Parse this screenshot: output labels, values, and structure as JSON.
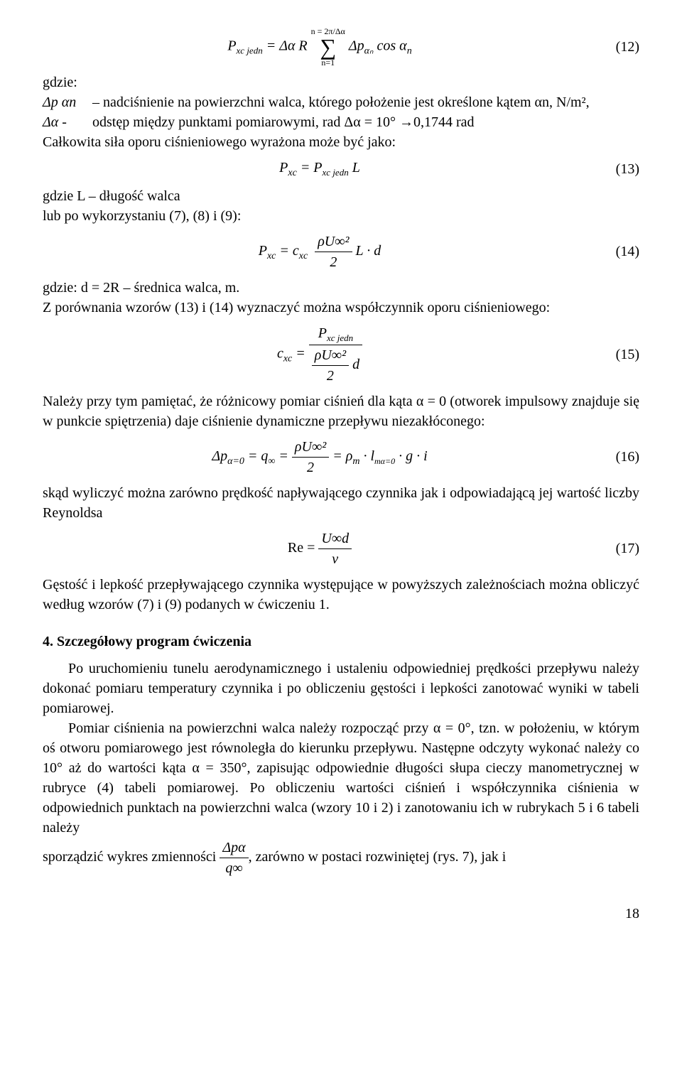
{
  "eq12": {
    "left": "P",
    "left_sub": "xc jedn",
    "mid1": " = Δα R ",
    "sum_top": "n = 2π/Δα",
    "sum_bot": "n=1",
    "after_sum": " Δp",
    "after_sum_sub": "αₙ",
    "cos": " cos α",
    "cos_sub": "n",
    "num": "(12)"
  },
  "gdzie1": "gdzie:",
  "def_dp": {
    "label": "Δp αn",
    "text": "– nadciśnienie na powierzchni walca, którego położenie jest określone kątem αn, N/m²,"
  },
  "def_da": {
    "label": "Δα -",
    "text": "odstęp między punktami pomiarowymi, rad  Δα = 10° →0,1744 rad"
  },
  "line_calk": "Całkowita siła oporu ciśnieniowego wyrażona może być jako:",
  "eq13": {
    "left": "P",
    "left_sub": "xc",
    "eq": " = P",
    "right_sub": "xc jedn",
    "tail": " L",
    "num": "(13)"
  },
  "line_gdzieL": "gdzie L – długość walca",
  "line_lubpo": "lub po wykorzystaniu (7), (8) i (9):",
  "eq14": {
    "left": "P",
    "left_sub": "xc",
    "eq1": " = c",
    "eq1_sub": "xc",
    "frac_num": "ρU∞²",
    "frac_den": "2",
    "tail": " L · d",
    "num": "(14)"
  },
  "line_gdzied": "gdzie: d = 2R – średnica walca, m.",
  "line_zporow": "Z porównania wzorów (13) i (14) wyznaczyć można współczynnik oporu ciśnieniowego:",
  "eq15": {
    "left": "c",
    "left_sub": "xc",
    "eq": " = ",
    "frac_num_P": "P",
    "frac_num_sub": "xc jedn",
    "frac_den_inner_num": "ρU∞²",
    "frac_den_inner_den": "2",
    "frac_den_tail": " d",
    "num": "(15)"
  },
  "para_nalezy": "Należy przy tym pamiętać, że różnicowy pomiar ciśnień dla kąta α = 0 (otworek impulsowy znajduje się w punkcie spiętrzenia) daje ciśnienie dynamiczne przepływu niezakłóconego:",
  "eq16": {
    "a": "Δp",
    "a_sub": "α=0",
    "b": " = q",
    "b_sub": "∞",
    "c": " = ",
    "frac_num": "ρU∞²",
    "frac_den": "2",
    "d": " = ρ",
    "d_sub": "m",
    "e": " · l",
    "e_sub": "mα=0",
    "f": " · g · i",
    "num": "(16)"
  },
  "para_skad": "skąd wyliczyć można zarówno prędkość napływającego czynnika jak i odpowiadającą jej wartość liczby Reynoldsa",
  "eq17": {
    "left": "Re = ",
    "frac_num": "U∞d",
    "frac_den": "ν",
    "num": "(17)"
  },
  "para_gest": "Gęstość i lepkość przepływającego czynnika występujące w powyższych zależnościach można obliczyć według wzorów (7) i (9) podanych w ćwiczeniu 1.",
  "heading4": "4. Szczegółowy program ćwiczenia",
  "para_p1": "Po uruchomieniu tunelu aerodynamicznego i ustaleniu odpowiedniej prędkości przepływu należy dokonać pomiaru temperatury czynnika i po obliczeniu gęstości i lepkości zanotować wyniki w tabeli pomiarowej.",
  "para_p2": "Pomiar ciśnienia na powierzchni walca należy rozpocząć przy α = 0°, tzn. w położeniu, w którym oś otworu pomiarowego jest równoległa do kierunku przepływu. Następne odczyty wykonać należy co 10° aż do wartości kąta α = 350°, zapisując odpowiednie długości słupa cieczy manometrycznej w rubryce (4) tabeli pomiarowej. Po obliczeniu wartości ciśnień i współczynnika ciśnienia w odpowiednich punktach na powierzchni walca (wzory 10 i 2) i zanotowaniu ich w rubrykach 5 i 6 tabeli należy",
  "para_p3_a": "sporządzić wykres zmienności ",
  "para_p3_frac_num": "Δpα",
  "para_p3_frac_den": "q∞",
  "para_p3_b": ", zarówno w postaci rozwiniętej (rys. 7), jak i",
  "page_num": "18"
}
